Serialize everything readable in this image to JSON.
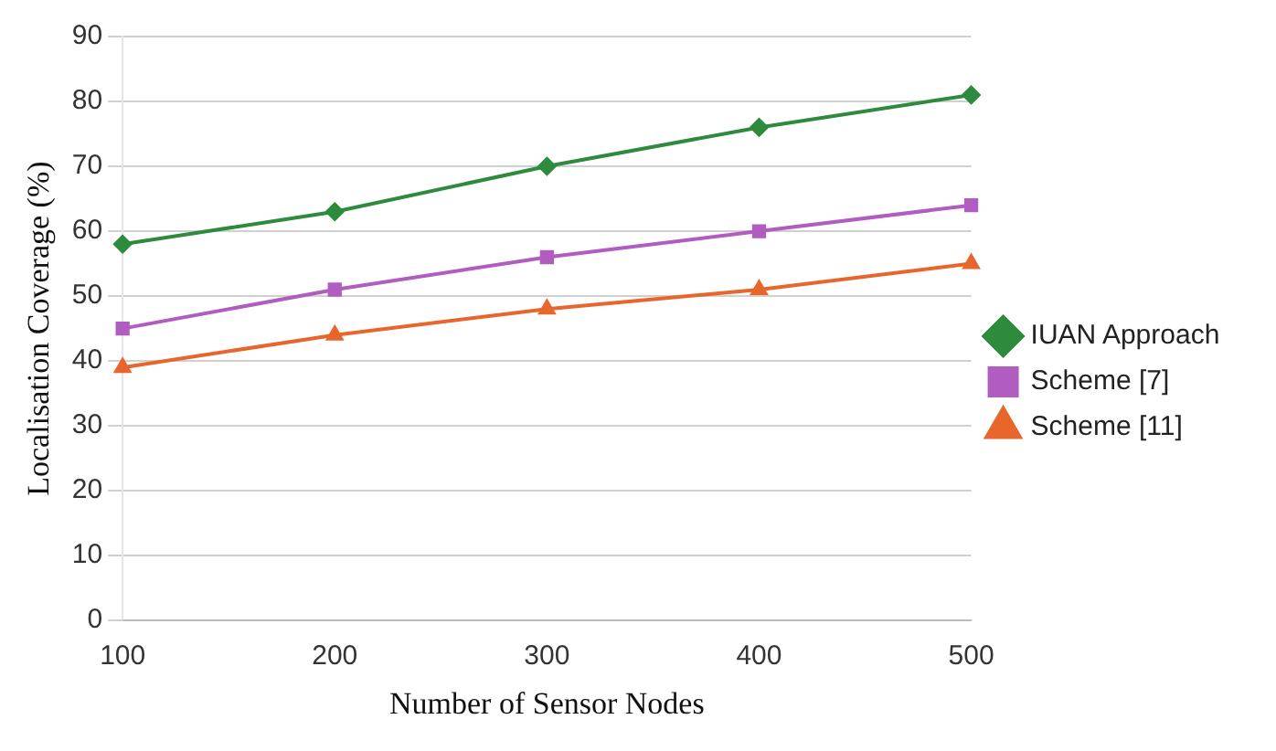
{
  "chart_data": {
    "type": "line",
    "xlabel": "Number of Sensor Nodes",
    "ylabel": "Localisation Coverage (%)",
    "categories": [
      "100",
      "200",
      "300",
      "400",
      "500"
    ],
    "series": [
      {
        "name": "IUAN Approach",
        "color": "#2e8b3e",
        "marker": "diamond",
        "values": [
          58,
          63,
          70,
          76,
          81
        ]
      },
      {
        "name": "Scheme [7]",
        "color": "#b05cc0",
        "marker": "square",
        "values": [
          45,
          51,
          56,
          60,
          64
        ]
      },
      {
        "name": "Scheme [11]",
        "color": "#e8662c",
        "marker": "triangle",
        "values": [
          39,
          44,
          48,
          51,
          55
        ]
      }
    ],
    "ylim": [
      0,
      90
    ],
    "yticks": [
      0,
      10,
      20,
      30,
      40,
      50,
      60,
      70,
      80,
      90
    ],
    "grid": "y",
    "legend": "right"
  }
}
